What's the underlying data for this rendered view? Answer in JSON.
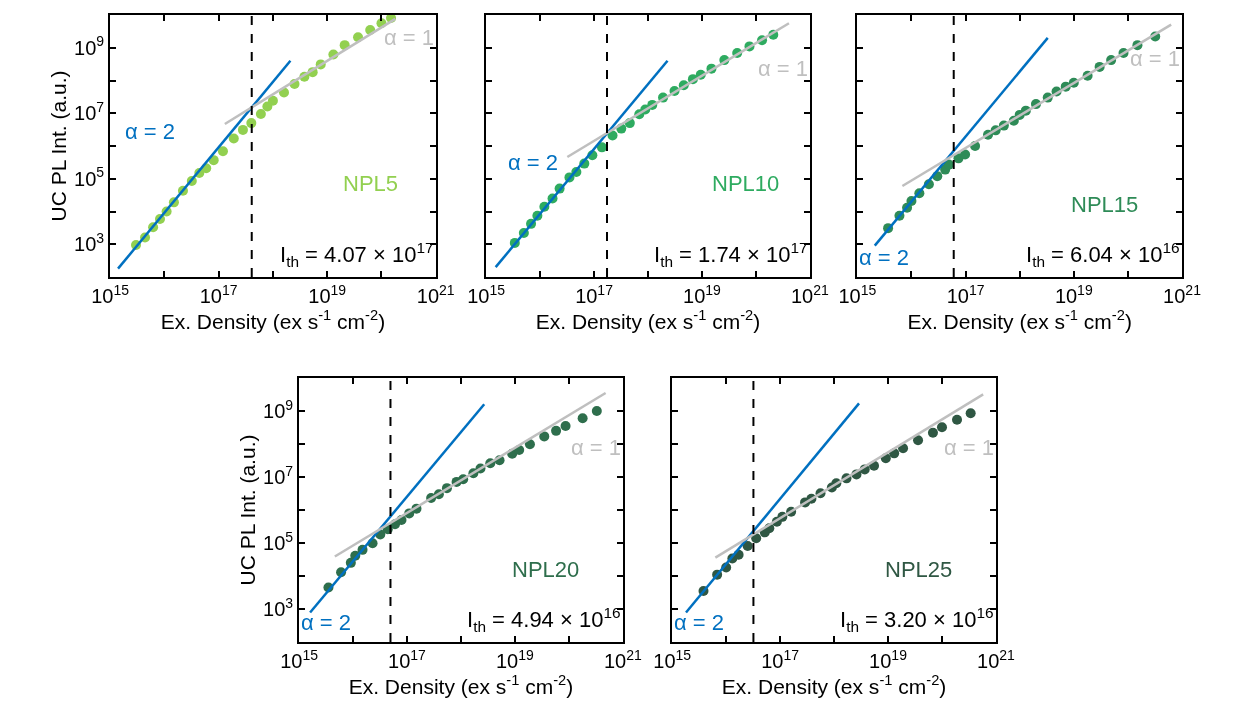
{
  "chart_data": [
    {
      "type": "scatter",
      "xlabel": "Ex. Density (ex s$^{-1}$ cm$^{-2}$)",
      "ylabel": "UC PL Int. (a.u.)",
      "log": "xy",
      "xlim": [
        1000000000000000.0,
        1e+21
      ],
      "ylim": [
        100.0,
        10000000000.0
      ],
      "xticks": [
        {
          "value": 1000000000000000.0,
          "label": "10$^{15}$"
        },
        {
          "value": 1e+16,
          "label": null
        },
        {
          "value": 1e+17,
          "label": "10$^{17}$"
        },
        {
          "value": 1e+18,
          "label": null
        },
        {
          "value": 1e+19,
          "label": "10$^{19}$"
        },
        {
          "value": 1e+20,
          "label": null
        },
        {
          "value": 1e+21,
          "label": "10$^{21}$"
        }
      ],
      "yticks": [
        {
          "value": 1000.0,
          "label": "10$^{3}$"
        },
        {
          "value": 10000.0,
          "label": null
        },
        {
          "value": 100000.0,
          "label": "10$^{5}$"
        },
        {
          "value": 1000000.0,
          "label": null
        },
        {
          "value": 10000000.0,
          "label": "10$^{7}$"
        },
        {
          "value": 100000000.0,
          "label": null
        },
        {
          "value": 1000000000.0,
          "label": "10$^{9}$"
        }
      ],
      "series": [
        {
          "name": "NPL5",
          "marker": "circle",
          "color": "#92d050",
          "x": [
            3000000000000000.0,
            4400000000000000.0,
            6200000000000000.0,
            8300000000000000.0,
            1.1e+16,
            1.5e+16,
            2.2e+16,
            3.2e+16,
            4.4e+16,
            5.9e+16,
            8.1e+16,
            1.2e+17,
            1.9e+17,
            2.8e+17,
            4e+17,
            6e+17,
            7.9e+17,
            1e+18,
            1.6e+18,
            2.5e+18,
            3.8e+18,
            5.4e+18,
            7.6e+18,
            1.3e+19,
            2.1e+19,
            3.7e+19,
            6.2e+19,
            1e+20,
            1.5e+20
          ],
          "values": [
            950.0,
            1600.0,
            3300.0,
            5900.0,
            10000.0,
            19000.0,
            43000.0,
            85000.0,
            150000.0,
            210000.0,
            370000.0,
            690000.0,
            1700000.0,
            3100000.0,
            5000000.0,
            9500000.0,
            16000000.0,
            24000000.0,
            43000000.0,
            78000000.0,
            130000000.0,
            180000000.0,
            310000000.0,
            620000000.0,
            1200000000.0,
            2100000000.0,
            3500000000.0,
            5600000000.0,
            8100000000.0
          ]
        },
        {
          "name": "α = 2",
          "type": "line",
          "marker": "none",
          "color": "#0070c0",
          "x": [
            1400000000000000.0,
            2.1e+18
          ],
          "values": [
            180.0,
            400000000.0
          ]
        },
        {
          "name": "α = 1",
          "type": "line",
          "marker": "none",
          "color": "#bfbfbf",
          "x": [
            1.3e+17,
            1.8e+20
          ],
          "values": [
            4700000.0,
            7600000000.0
          ]
        }
      ],
      "ref_lines": [
        {
          "axis": "x",
          "value": 4.07e+17,
          "color": "#000000",
          "line_style": "dashed"
        }
      ],
      "annotations": [
        "I$_{th}$ = 4.07 × 10$^{17}$"
      ]
    },
    {
      "type": "scatter",
      "xlabel": "Ex. Density (ex s$^{-1}$ cm$^{-2}$)",
      "log": "xy",
      "xlim": [
        1000000000000000.0,
        1e+21
      ],
      "ylim": [
        100.0,
        10000000000.0
      ],
      "tick_labels": "x",
      "xticks": [
        {
          "value": 1000000000000000.0,
          "label": "10$^{15}$"
        },
        {
          "value": 1e+16,
          "label": null
        },
        {
          "value": 1e+17,
          "label": "10$^{17}$"
        },
        {
          "value": 1e+18,
          "label": null
        },
        {
          "value": 1e+19,
          "label": "10$^{19}$"
        },
        {
          "value": 1e+20,
          "label": null
        },
        {
          "value": 1e+21,
          "label": "10$^{21}$"
        }
      ],
      "yticks": [
        {
          "value": 1000.0,
          "label": null
        },
        {
          "value": 10000.0,
          "label": null
        },
        {
          "value": 100000.0,
          "label": null
        },
        {
          "value": 1000000.0,
          "label": null
        },
        {
          "value": 10000000.0,
          "label": null
        },
        {
          "value": 100000000.0,
          "label": null
        },
        {
          "value": 1000000000.0,
          "label": null
        }
      ],
      "series": [
        {
          "name": "NPL10",
          "marker": "circle",
          "color": "#2eab60",
          "x": [
            3400000000000000.0,
            5000000000000000.0,
            6800000000000000.0,
            8900000000000000.0,
            1.2e+16,
            1.7e+16,
            2.3e+16,
            3.5e+16,
            4.7e+16,
            6.6e+16,
            9.3e+16,
            1.4e+17,
            2.2e+17,
            3.2e+17,
            4.6e+17,
            6.9e+17,
            8.9e+17,
            1.2e+18,
            1.9e+18,
            3.1e+18,
            4.6e+18,
            6.8e+18,
            9.5e+18,
            1.5e+19,
            2.6e+19,
            4.5e+19,
            7.6e+19,
            1.3e+20,
            2.1e+20
          ],
          "values": [
            1100.0,
            2200.0,
            4200.0,
            7400.0,
            14000.0,
            25000.0,
            50000.0,
            110000.0,
            160000.0,
            290000.0,
            520000.0,
            910000.0,
            2100000.0,
            3400000.0,
            5000000.0,
            9300000.0,
            13000000.0,
            18000000.0,
            30000000.0,
            48000000.0,
            72000000.0,
            110000000.0,
            150000000.0,
            230000000.0,
            420000000.0,
            690000000.0,
            1100000000.0,
            1700000000.0,
            2500000000.0
          ]
        },
        {
          "name": "α = 2",
          "type": "line",
          "marker": "none",
          "color": "#0070c0",
          "x": [
            1500000000000000.0,
            2.3e+18
          ],
          "values": [
            200.0,
            400000000.0
          ]
        },
        {
          "name": "α = 1",
          "type": "line",
          "marker": "none",
          "color": "#bfbfbf",
          "x": [
            3.2e+16,
            4.1e+20
          ],
          "values": [
            460000.0,
            5600000000.0
          ]
        }
      ],
      "ref_lines": [
        {
          "axis": "x",
          "value": 1.74e+17,
          "color": "#000000",
          "line_style": "dashed"
        }
      ],
      "annotations": [
        "I$_{th}$ = 1.74 × 10$^{17}$"
      ]
    },
    {
      "type": "scatter",
      "xlabel": "Ex. Density (ex s$^{-1}$ cm$^{-2}$)",
      "log": "xy",
      "xlim": [
        1000000000000000.0,
        1e+21
      ],
      "ylim": [
        100.0,
        10000000000.0
      ],
      "tick_labels": "x",
      "xticks": [
        {
          "value": 1000000000000000.0,
          "label": "10$^{15}$"
        },
        {
          "value": 1e+16,
          "label": null
        },
        {
          "value": 1e+17,
          "label": "10$^{17}$"
        },
        {
          "value": 1e+18,
          "label": null
        },
        {
          "value": 1e+19,
          "label": "10$^{19}$"
        },
        {
          "value": 1e+20,
          "label": null
        },
        {
          "value": 1e+21,
          "label": "10$^{21}$"
        }
      ],
      "yticks": [
        {
          "value": 1000.0,
          "label": null
        },
        {
          "value": 10000.0,
          "label": null
        },
        {
          "value": 100000.0,
          "label": null
        },
        {
          "value": 1000000.0,
          "label": null
        },
        {
          "value": 10000000.0,
          "label": null
        },
        {
          "value": 100000000.0,
          "label": null
        },
        {
          "value": 1000000000.0,
          "label": null
        }
      ],
      "series": [
        {
          "name": "NPL15",
          "marker": "circle",
          "color": "#2e8b57",
          "x": [
            3700000000000000.0,
            6000000000000000.0,
            8300000000000000.0,
            1e+16,
            1.4e+16,
            2.1e+16,
            3e+16,
            4.2e+16,
            4.9e+16,
            7.4e+16,
            9.8e+16,
            1.5e+17,
            2.6e+17,
            3.6e+17,
            5.1e+17,
            7.8e+17,
            1e+18,
            1.3e+18,
            2e+18,
            3.3e+18,
            4.8e+18,
            7.1e+18,
            1e+19,
            1.8e+19,
            3e+19,
            4.9e+19,
            8.3e+19,
            1.5e+20,
            3.2e+20
          ],
          "values": [
            3100.0,
            7400.0,
            13000.0,
            21000.0,
            36000.0,
            68000.0,
            120000.0,
            190000.0,
            270000.0,
            420000.0,
            550000.0,
            1000000.0,
            2200000.0,
            3000000.0,
            4200000.0,
            5900000.0,
            8900000.0,
            12000000.0,
            19000000.0,
            30000000.0,
            46000000.0,
            65000000.0,
            85000000.0,
            140000000.0,
            260000000.0,
            420000000.0,
            690000000.0,
            1200000000.0,
            2200000000.0
          ]
        },
        {
          "name": "α = 2",
          "type": "line",
          "marker": "none",
          "color": "#0070c0",
          "x": [
            2100000000000000.0,
            3.3e+18
          ],
          "values": [
            910.0,
            2000000000.0
          ]
        },
        {
          "name": "α = 1",
          "type": "line",
          "marker": "none",
          "color": "#bfbfbf",
          "x": [
            6800000000000000.0,
            6.3e+20
          ],
          "values": [
            60000.0,
            5100000000.0
          ]
        }
      ],
      "ref_lines": [
        {
          "axis": "x",
          "value": 6.04e+16,
          "color": "#000000",
          "line_style": "dashed"
        }
      ],
      "annotations": [
        "I$_{th}$ = 6.04 × 10$^{16}$"
      ]
    },
    {
      "type": "scatter",
      "xlabel": "Ex. Density (ex s$^{-1}$ cm$^{-2}$)",
      "ylabel": "UC PL Int. (a.u.)",
      "log": "xy",
      "xlim": [
        1000000000000000.0,
        1e+21
      ],
      "ylim": [
        100.0,
        10000000000.0
      ],
      "xticks": [
        {
          "value": 1000000000000000.0,
          "label": "10$^{15}$"
        },
        {
          "value": 1e+16,
          "label": null
        },
        {
          "value": 1e+17,
          "label": "10$^{17}$"
        },
        {
          "value": 1e+18,
          "label": null
        },
        {
          "value": 1e+19,
          "label": "10$^{19}$"
        },
        {
          "value": 1e+20,
          "label": null
        },
        {
          "value": 1e+21,
          "label": "10$^{21}$"
        }
      ],
      "yticks": [
        {
          "value": 1000.0,
          "label": "10$^{3}$"
        },
        {
          "value": 10000.0,
          "label": null
        },
        {
          "value": 100000.0,
          "label": "10$^{5}$"
        },
        {
          "value": 1000000.0,
          "label": null
        },
        {
          "value": 10000000.0,
          "label": "10$^{7}$"
        },
        {
          "value": 100000000.0,
          "label": null
        },
        {
          "value": 1000000000.0,
          "label": "10$^{9}$"
        }
      ],
      "series": [
        {
          "name": "NPL20",
          "marker": "circle",
          "color": "#2e6e4c",
          "x": [
            3500000000000000.0,
            6000000000000000.0,
            9100000000000000.0,
            1.1e+16,
            1.5e+16,
            2.3e+16,
            3.2e+16,
            4.4e+16,
            6e+16,
            7.9e+16,
            1.1e+17,
            1.5e+17,
            2.8e+17,
            3.9e+17,
            5.5e+17,
            8.3e+17,
            1.1e+18,
            1.7e+18,
            2.3e+18,
            3.5e+18,
            5.2e+18,
            8.9e+18,
            1.2e+19,
            1.9e+19,
            3.5e+19,
            5.8e+19,
            8.7e+19,
            1.8e+20,
            3.3e+20
          ],
          "values": [
            4500.0,
            13000.0,
            25000.0,
            41000.0,
            62000.0,
            98000.0,
            180000.0,
            260000.0,
            370000.0,
            500000.0,
            790000.0,
            1100000.0,
            2300000.0,
            3000000.0,
            4600000.0,
            7100000.0,
            8500000.0,
            13000000.0,
            18000000.0,
            26000000.0,
            32000000.0,
            51000000.0,
            66000000.0,
            98000000.0,
            170000000.0,
            250000000.0,
            350000000.0,
            600000000.0,
            1000000000.0
          ]
        },
        {
          "name": "α = 2",
          "type": "line",
          "marker": "none",
          "color": "#0070c0",
          "x": [
            1600000000000000.0,
            2.7e+18
          ],
          "values": [
            780.0,
            1600000000.0
          ]
        },
        {
          "name": "α = 1",
          "type": "line",
          "marker": "none",
          "color": "#bfbfbf",
          "x": [
            4600000000000000.0,
            4.8e+20
          ],
          "values": [
            39000.0,
            3500000000.0
          ]
        }
      ],
      "ref_lines": [
        {
          "axis": "x",
          "value": 4.94e+16,
          "color": "#000000",
          "line_style": "dashed"
        }
      ],
      "annotations": [
        "I$_{th}$ = 4.94 × 10$^{16}$"
      ]
    },
    {
      "type": "scatter",
      "xlabel": "Ex. Density (ex s$^{-1}$ cm$^{-2}$)",
      "log": "xy",
      "xlim": [
        1000000000000000.0,
        1e+21
      ],
      "ylim": [
        100.0,
        10000000000.0
      ],
      "tick_labels": "x",
      "xticks": [
        {
          "value": 1000000000000000.0,
          "label": "10$^{15}$"
        },
        {
          "value": 1e+16,
          "label": null
        },
        {
          "value": 1e+17,
          "label": "10$^{17}$"
        },
        {
          "value": 1e+18,
          "label": null
        },
        {
          "value": 1e+19,
          "label": "10$^{19}$"
        },
        {
          "value": 1e+20,
          "label": null
        },
        {
          "value": 1e+21,
          "label": "10$^{21}$"
        }
      ],
      "yticks": [
        {
          "value": 1000.0,
          "label": null
        },
        {
          "value": 10000.0,
          "label": null
        },
        {
          "value": 100000.0,
          "label": null
        },
        {
          "value": 1000000.0,
          "label": null
        },
        {
          "value": 10000000.0,
          "label": null
        },
        {
          "value": 100000000.0,
          "label": null
        },
        {
          "value": 1000000000.0,
          "label": null
        }
      ],
      "series": [
        {
          "name": "NPL25",
          "marker": "circle",
          "color": "#2f5743",
          "x": [
            3800000000000000.0,
            6800000000000000.0,
            1e+16,
            1.3e+16,
            1.7e+16,
            2.5e+16,
            3.6e+16,
            5.2e+16,
            6.3e+16,
            8.7e+16,
            1.1e+17,
            1.6e+17,
            2.9e+17,
            3.8e+17,
            5.6e+17,
            9.1e+17,
            1.1e+18,
            1.7e+18,
            2.6e+18,
            3.7e+18,
            5.5e+18,
            9.1e+18,
            1.3e+19,
            1.9e+19,
            3.6e+19,
            6.8e+19,
            1e+20,
            1.9e+20,
            3.4e+20
          ],
          "values": [
            3500.0,
            11000.0,
            18000.0,
            34000.0,
            44000.0,
            81000.0,
            140000.0,
            210000.0,
            280000.0,
            440000.0,
            620000.0,
            890000.0,
            1700000.0,
            2200000.0,
            3200000.0,
            4800000.0,
            6500000.0,
            9100000.0,
            12000000.0,
            17000000.0,
            22000000.0,
            37000000.0,
            52000000.0,
            74000000.0,
            130000000.0,
            220000000.0,
            320000000.0,
            540000000.0,
            850000000.0
          ]
        },
        {
          "name": "α = 2",
          "type": "line",
          "marker": "none",
          "color": "#0070c0",
          "x": [
            1800000000000000.0,
            2.9e+18
          ],
          "values": [
            780.0,
            1700000000.0
          ]
        },
        {
          "name": "α = 1",
          "type": "line",
          "marker": "none",
          "color": "#bfbfbf",
          "x": [
            6300000000000000.0,
            5.8e+20
          ],
          "values": [
            36000.0,
            3200000000.0
          ]
        }
      ],
      "ref_lines": [
        {
          "axis": "x",
          "value": 3.2e+16,
          "color": "#000000",
          "line_style": "dashed"
        }
      ],
      "annotations": [
        "I$_{th}$ = 3.20 × 10$^{16}$"
      ]
    }
  ]
}
